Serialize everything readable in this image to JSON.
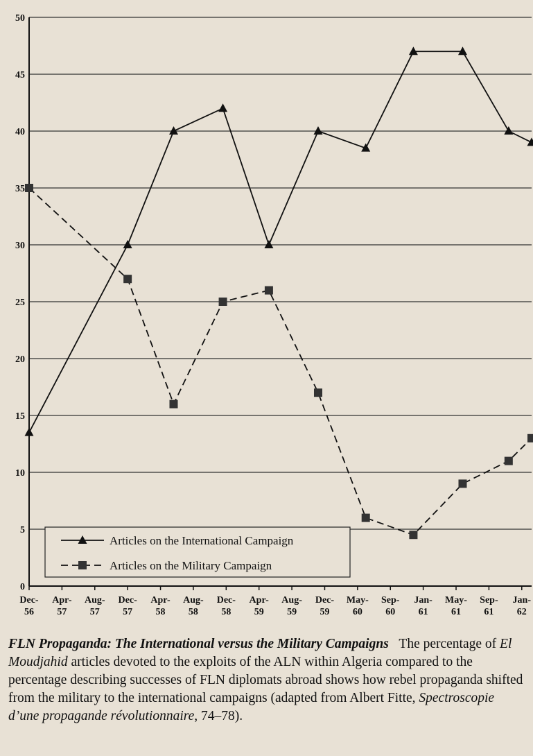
{
  "chart_data": {
    "type": "line",
    "xlim": [
      0,
      15.3
    ],
    "xticks": [
      {
        "value": 0,
        "label": "Dec-56"
      },
      {
        "value": 1,
        "label": "Apr-57"
      },
      {
        "value": 2,
        "label": "Aug-57"
      },
      {
        "value": 3,
        "label": "Dec-57"
      },
      {
        "value": 4,
        "label": "Apr-58"
      },
      {
        "value": 5,
        "label": "Aug-58"
      },
      {
        "value": 6,
        "label": "Dec-58"
      },
      {
        "value": 7,
        "label": "Apr-59"
      },
      {
        "value": 8,
        "label": "Aug-59"
      },
      {
        "value": 9,
        "label": "Dec-59"
      },
      {
        "value": 10,
        "label": "May-60"
      },
      {
        "value": 11,
        "label": "Sep-60"
      },
      {
        "value": 12,
        "label": "Jan-61"
      },
      {
        "value": 13,
        "label": "May-61"
      },
      {
        "value": 14,
        "label": "Sep-61"
      },
      {
        "value": 15,
        "label": "Jan-62"
      }
    ],
    "x": [
      0,
      3,
      4.4,
      5.9,
      7.3,
      8.8,
      10.25,
      11.7,
      13.2,
      14.6,
      15.3
    ],
    "ylim": [
      0,
      50
    ],
    "yticks": [
      0,
      5,
      10,
      15,
      20,
      25,
      30,
      35,
      40,
      45,
      50
    ],
    "grid": true,
    "series": [
      {
        "name": "Articles on the International Campaign",
        "color": "#111111",
        "marker": "triangle",
        "dash": false,
        "values": [
          13.5,
          30,
          40,
          42,
          30,
          40,
          38.5,
          47,
          47,
          40,
          39
        ]
      },
      {
        "name": "Articles on the Military Campaign",
        "color": "#111111",
        "marker": "square",
        "dash": true,
        "values": [
          35,
          27,
          16,
          25,
          26,
          17,
          6,
          4.5,
          9,
          11,
          13
        ]
      }
    ],
    "caption": [
      "FLN Propaganda: The International versus the Military Campaigns",
      "The percentage of ",
      "El Moudjahid",
      " articles devoted to the exploits of the ALN within Algeria compared to the percentage describing successes of FLN diplomats abroad shows how rebel propaganda shifted from the military to the international campaigns (adapted from Albert Fitte, ",
      "Spectroscopie d’une propagande révolutionnaire",
      ", 74–78)."
    ]
  }
}
